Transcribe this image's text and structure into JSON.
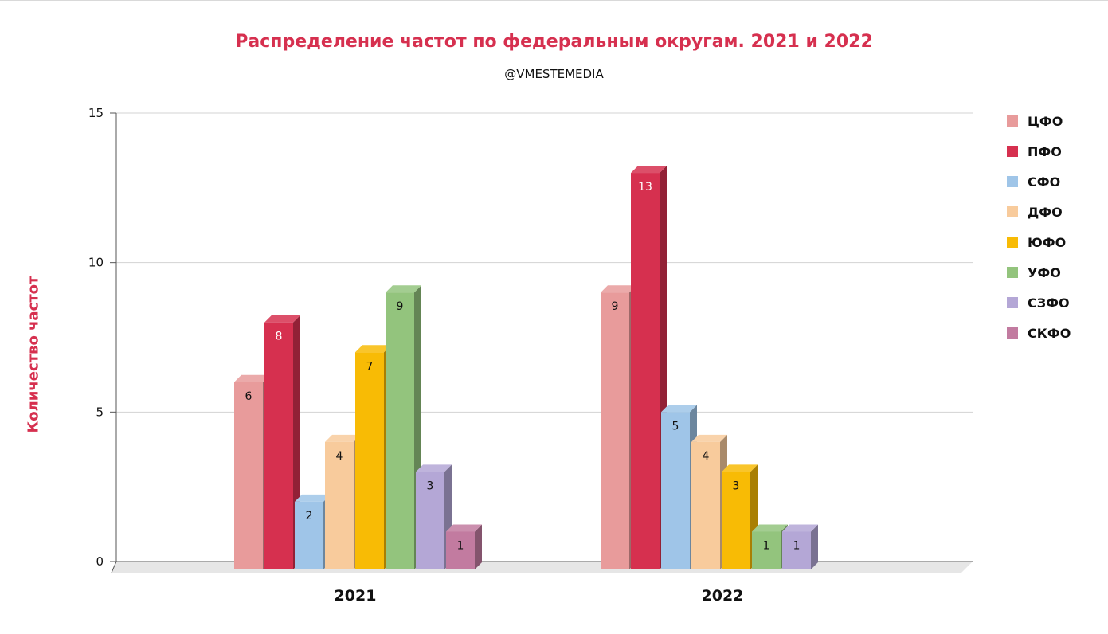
{
  "chart_data": {
    "type": "bar",
    "title": "Распределение частот по федеральным округам. 2021 и 2022",
    "subtitle": "@VMESTEMEDIA",
    "ylabel": "Количество частот",
    "xlabel": "",
    "ylim": [
      0,
      15
    ],
    "yticks": [
      "0",
      "5",
      "10",
      "15"
    ],
    "grid": true,
    "legend_position": "right",
    "categories": [
      "2021",
      "2022"
    ],
    "series": [
      {
        "name": "ЦФО",
        "color": "#e89b9b",
        "values": [
          6,
          9
        ]
      },
      {
        "name": "ПФО",
        "color": "#d6304f",
        "values": [
          8,
          13
        ]
      },
      {
        "name": "СФО",
        "color": "#9fc5e8",
        "values": [
          2,
          5
        ]
      },
      {
        "name": "ДФО",
        "color": "#f8cb9c",
        "values": [
          4,
          4
        ]
      },
      {
        "name": "ЮФО",
        "color": "#f8bb05",
        "values": [
          7,
          3
        ]
      },
      {
        "name": "УФО",
        "color": "#93c47d",
        "values": [
          9,
          1
        ]
      },
      {
        "name": "СЗФО",
        "color": "#b4a7d6",
        "values": [
          3,
          1
        ]
      },
      {
        "name": "СКФО",
        "color": "#c27ba0",
        "values": [
          1,
          null
        ]
      }
    ],
    "value_label_colors": {
      "ПФО": "#ffffff"
    }
  }
}
